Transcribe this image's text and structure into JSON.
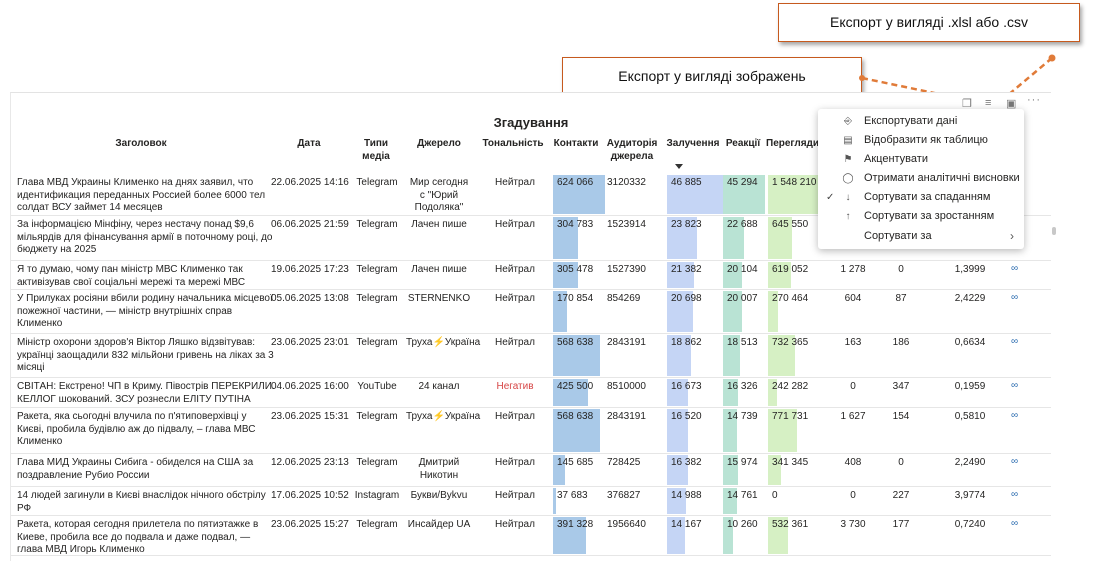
{
  "callouts": {
    "export_data": "Експорт у вигляді .xlsl або .csv",
    "export_image": "Експорт у вигляді зображень"
  },
  "visual": {
    "title": "Згадування",
    "columns": {
      "title": "Заголовок",
      "date": "Дата",
      "media_type": "Типи медіа",
      "source": "Джерело",
      "tone": "Тональність",
      "contacts": "Контакти",
      "audience": "Аудиторія джерела",
      "engagement": "Залучення",
      "reactions": "Реакції",
      "views": "Перегляди"
    },
    "rows": [
      {
        "title": "Глава МВД Украины Клименко на днях заявил, что идентификация переданных Россией более 6000 тел солдат ВСУ займет 14 месяцев",
        "date": "22.06.2025 14:16",
        "media": "Telegram",
        "source": "Мир сегодня с \"Юрий Подоляка\"",
        "tone": "Нейтрал",
        "contacts": "624 066",
        "contacts_v": 624066,
        "audience": "3120332",
        "engagement": "46 885",
        "engagement_v": 46885,
        "reactions": "45 294",
        "reactions_v": 45294,
        "views": "1 548 210",
        "views_v": 1548210,
        "c1": "",
        "c2": "",
        "c3": ""
      },
      {
        "title": "За інформацією Мінфіну, через нестачу понад $9,6 мільярдів для фінансування армії в поточному році, до бюджету на 2025",
        "date": "06.06.2025 21:59",
        "media": "Telegram",
        "source": "Лачен пише",
        "tone": "Нейтрал",
        "contacts": "304 783",
        "contacts_v": 304783,
        "audience": "1523914",
        "engagement": "23 823",
        "engagement_v": 23823,
        "reactions": "22 688",
        "reactions_v": 22688,
        "views": "645 550",
        "views_v": 645550,
        "c1": "",
        "c2": "",
        "c3": ""
      },
      {
        "title": "Я то думаю, чому пан міністр МВС Клименко так активізував свої соціальні мережі та мережі МВС",
        "date": "19.06.2025 17:23",
        "media": "Telegram",
        "source": "Лачен пише",
        "tone": "Нейтрал",
        "contacts": "305 478",
        "contacts_v": 305478,
        "audience": "1527390",
        "engagement": "21 382",
        "engagement_v": 21382,
        "reactions": "20 104",
        "reactions_v": 20104,
        "views": "619 052",
        "views_v": 619052,
        "c1": "1 278",
        "c2": "0",
        "c3": "1,3999"
      },
      {
        "title": "У Прилуках росіяни вбили родину начальника місцевої пожежної частини, — міністр внутрішніх справ Клименко",
        "date": "05.06.2025 13:08",
        "media": "Telegram",
        "source": "STERNENKO",
        "tone": "Нейтрал",
        "contacts": "170 854",
        "contacts_v": 170854,
        "audience": "854269",
        "engagement": "20 698",
        "engagement_v": 20698,
        "reactions": "20 007",
        "reactions_v": 20007,
        "views": "270 464",
        "views_v": 270464,
        "c1": "604",
        "c2": "87",
        "c3": "2,4229"
      },
      {
        "title": "Міністр охорони здоров'я Віктор Ляшко відзвітував: українці заощадили 832 мільйони гривень на ліках за 3 місяці",
        "date": "23.06.2025 23:01",
        "media": "Telegram",
        "source": "Труха⚡Україна",
        "tone": "Нейтрал",
        "contacts": "568 638",
        "contacts_v": 568638,
        "audience": "2843191",
        "engagement": "18 862",
        "engagement_v": 18862,
        "reactions": "18 513",
        "reactions_v": 18513,
        "views": "732 365",
        "views_v": 732365,
        "c1": "163",
        "c2": "186",
        "c3": "0,6634"
      },
      {
        "title": "СВІТАН: Екстрено! ЧП в Криму. Півострів ПЕРЕКРИЛИ. КЕЛЛОГ шокований. ЗСУ рознесли ЕЛІТУ ПУТІНА",
        "date": "04.06.2025 16:00",
        "media": "YouTube",
        "source": "24 канал",
        "tone": "Негатив",
        "contacts": "425 500",
        "contacts_v": 425500,
        "audience": "8510000",
        "engagement": "16 673",
        "engagement_v": 16673,
        "reactions": "16 326",
        "reactions_v": 16326,
        "views": "242 282",
        "views_v": 242282,
        "c1": "0",
        "c2": "347",
        "c3": "0,1959"
      },
      {
        "title": "Ракета, яка сьогодні влучила по п'ятиповерхівці у Києві, пробила будівлю аж до підвалу, – глава МВС Клименко",
        "date": "23.06.2025 15:31",
        "media": "Telegram",
        "source": "Труха⚡Україна",
        "tone": "Нейтрал",
        "contacts": "568 638",
        "contacts_v": 568638,
        "audience": "2843191",
        "engagement": "16 520",
        "engagement_v": 16520,
        "reactions": "14 739",
        "reactions_v": 14739,
        "views": "771 731",
        "views_v": 771731,
        "c1": "1 627",
        "c2": "154",
        "c3": "0,5810"
      },
      {
        "title": "Глава МИД Украины Сибига - обиделся на США за поздравление Рубио России",
        "date": "12.06.2025 23:13",
        "media": "Telegram",
        "source": "Дмитрий Никотин",
        "tone": "Нейтрал",
        "contacts": "145 685",
        "contacts_v": 145685,
        "audience": "728425",
        "engagement": "16 382",
        "engagement_v": 16382,
        "reactions": "15 974",
        "reactions_v": 15974,
        "views": "341 345",
        "views_v": 341345,
        "c1": "408",
        "c2": "0",
        "c3": "2,2490"
      },
      {
        "title": "14 людей загинули в Києві внаслідок нічного обстрілу РФ",
        "date": "17.06.2025 10:52",
        "media": "Instagram",
        "source": "Букви/Bykvu",
        "tone": "Нейтрал",
        "contacts": "37 683",
        "contacts_v": 37683,
        "audience": "376827",
        "engagement": "14 988",
        "engagement_v": 14988,
        "reactions": "14 761",
        "reactions_v": 14761,
        "views": "0",
        "views_v": 0,
        "c1": "0",
        "c2": "227",
        "c3": "3,9774"
      },
      {
        "title": "Ракета, которая сегодня прилетела по пятиэтажке в Киеве, пробила все до подвала и даже подвал, — глава МВД Игорь Клименко",
        "date": "23.06.2025 15:27",
        "media": "Telegram",
        "source": "Инсайдер UA",
        "tone": "Нейтрал",
        "contacts": "391 328",
        "contacts_v": 391328,
        "audience": "1956640",
        "engagement": "14 167",
        "engagement_v": 14167,
        "reactions": "10 260",
        "reactions_v": 10260,
        "views": "532 361",
        "views_v": 532361,
        "c1": "3 730",
        "c2": "177",
        "c3": "0,7240"
      }
    ]
  },
  "context_menu": {
    "items": [
      {
        "label": "Експортувати дані",
        "icon": "export-icon",
        "checked": false
      },
      {
        "label": "Відобразити як таблицю",
        "icon": "table-icon",
        "checked": false
      },
      {
        "label": "Акцентувати",
        "icon": "spotlight-icon",
        "checked": false
      },
      {
        "label": "Отримати аналітичні висновки",
        "icon": "lightbulb-icon",
        "checked": false
      },
      {
        "label": "Сортувати за спаданням",
        "icon": "sort-descending-icon",
        "checked": true
      },
      {
        "label": "Сортувати за зростанням",
        "icon": "sort-ascending-icon",
        "checked": false
      },
      {
        "label": "Сортувати за",
        "icon": "",
        "checked": false
      }
    ]
  },
  "colors": {
    "contacts_bar": "#a9c9e8",
    "engagement_bar": "#c5d5f5",
    "reactions_bar": "#b9e3d4",
    "views_bar": "#d6f0c4",
    "negative_text": "#d64545",
    "callout_border": "#c65a1e",
    "callout_arrow": "#e07b39"
  }
}
